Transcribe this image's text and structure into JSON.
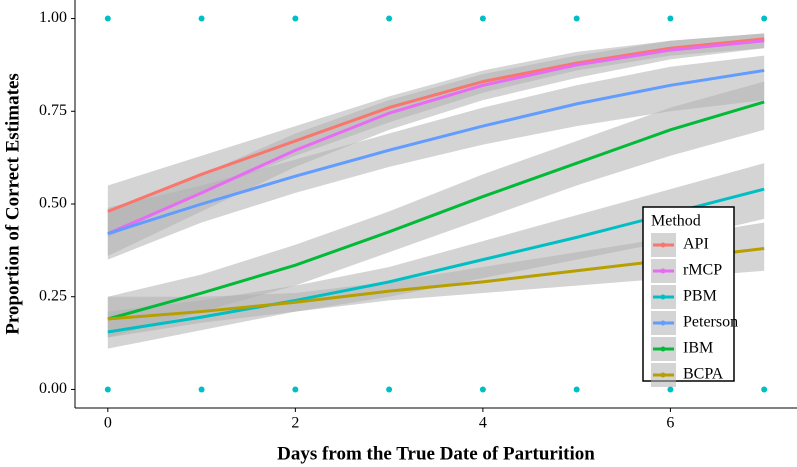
{
  "chart_data": {
    "type": "line",
    "x_label": "Days from the True Date of Parturition",
    "y_label": "Proportion of Correct Estimates",
    "x": [
      0,
      1,
      2,
      3,
      4,
      5,
      6,
      7
    ],
    "series": [
      {
        "name": "API",
        "color": "#F8766D",
        "values": [
          0.48,
          0.58,
          0.67,
          0.76,
          0.83,
          0.88,
          0.92,
          0.945
        ],
        "lower": [
          0.41,
          0.53,
          0.63,
          0.72,
          0.8,
          0.86,
          0.9,
          0.92
        ],
        "upper": [
          0.55,
          0.63,
          0.71,
          0.79,
          0.86,
          0.91,
          0.94,
          0.96
        ]
      },
      {
        "name": "rMCP",
        "color": "#E76BF3",
        "values": [
          0.42,
          0.53,
          0.645,
          0.745,
          0.82,
          0.875,
          0.915,
          0.94
        ],
        "lower": [
          0.36,
          0.48,
          0.6,
          0.7,
          0.78,
          0.84,
          0.89,
          0.92
        ],
        "upper": [
          0.48,
          0.58,
          0.69,
          0.78,
          0.85,
          0.9,
          0.94,
          0.96
        ]
      },
      {
        "name": "PBM",
        "color": "#00BFC4",
        "values": [
          0.155,
          0.195,
          0.24,
          0.29,
          0.35,
          0.41,
          0.475,
          0.54
        ],
        "lower": [
          0.11,
          0.16,
          0.21,
          0.25,
          0.3,
          0.35,
          0.4,
          0.46
        ],
        "upper": [
          0.21,
          0.24,
          0.28,
          0.33,
          0.4,
          0.47,
          0.54,
          0.61
        ]
      },
      {
        "name": "Peterson",
        "color": "#619CFF",
        "values": [
          0.42,
          0.5,
          0.575,
          0.645,
          0.71,
          0.77,
          0.82,
          0.86
        ],
        "lower": [
          0.35,
          0.45,
          0.53,
          0.6,
          0.66,
          0.71,
          0.75,
          0.78
        ],
        "upper": [
          0.49,
          0.55,
          0.62,
          0.69,
          0.76,
          0.82,
          0.87,
          0.9
        ]
      },
      {
        "name": "IBM",
        "color": "#00BA38",
        "values": [
          0.19,
          0.26,
          0.335,
          0.425,
          0.52,
          0.61,
          0.7,
          0.775
        ],
        "lower": [
          0.14,
          0.21,
          0.28,
          0.37,
          0.46,
          0.55,
          0.63,
          0.7
        ],
        "upper": [
          0.25,
          0.31,
          0.39,
          0.48,
          0.58,
          0.67,
          0.76,
          0.83
        ]
      },
      {
        "name": "BCPA",
        "color": "#B79F00",
        "values": [
          0.19,
          0.21,
          0.235,
          0.265,
          0.29,
          0.32,
          0.35,
          0.38
        ],
        "lower": [
          0.14,
          0.18,
          0.21,
          0.24,
          0.26,
          0.28,
          0.3,
          0.32
        ],
        "upper": [
          0.25,
          0.25,
          0.26,
          0.29,
          0.33,
          0.37,
          0.41,
          0.45
        ]
      }
    ],
    "points": {
      "color": "#00BFC4",
      "x": [
        0,
        1,
        2,
        3,
        4,
        5,
        6,
        7,
        0,
        1,
        2,
        3,
        4,
        5,
        6,
        7
      ],
      "y": [
        1,
        1,
        1,
        1,
        1,
        1,
        1,
        1,
        0,
        0,
        0,
        0,
        0,
        0,
        0,
        0
      ]
    },
    "band_color": "#b0b0b0",
    "legend_title": "Method",
    "legend_position": "bottom-right",
    "xlim": [
      -0.35,
      7.35
    ],
    "ylim": [
      -0.05,
      1.05
    ],
    "xticks": [
      0,
      2,
      4,
      6
    ],
    "yticks": [
      {
        "value": 0,
        "label": "0.00"
      },
      {
        "value": 0.25,
        "label": "0.25"
      },
      {
        "value": 0.5,
        "label": "0.50"
      },
      {
        "value": 0.75,
        "label": "0.75"
      },
      {
        "value": 1,
        "label": "1.00"
      }
    ],
    "grid": false
  }
}
